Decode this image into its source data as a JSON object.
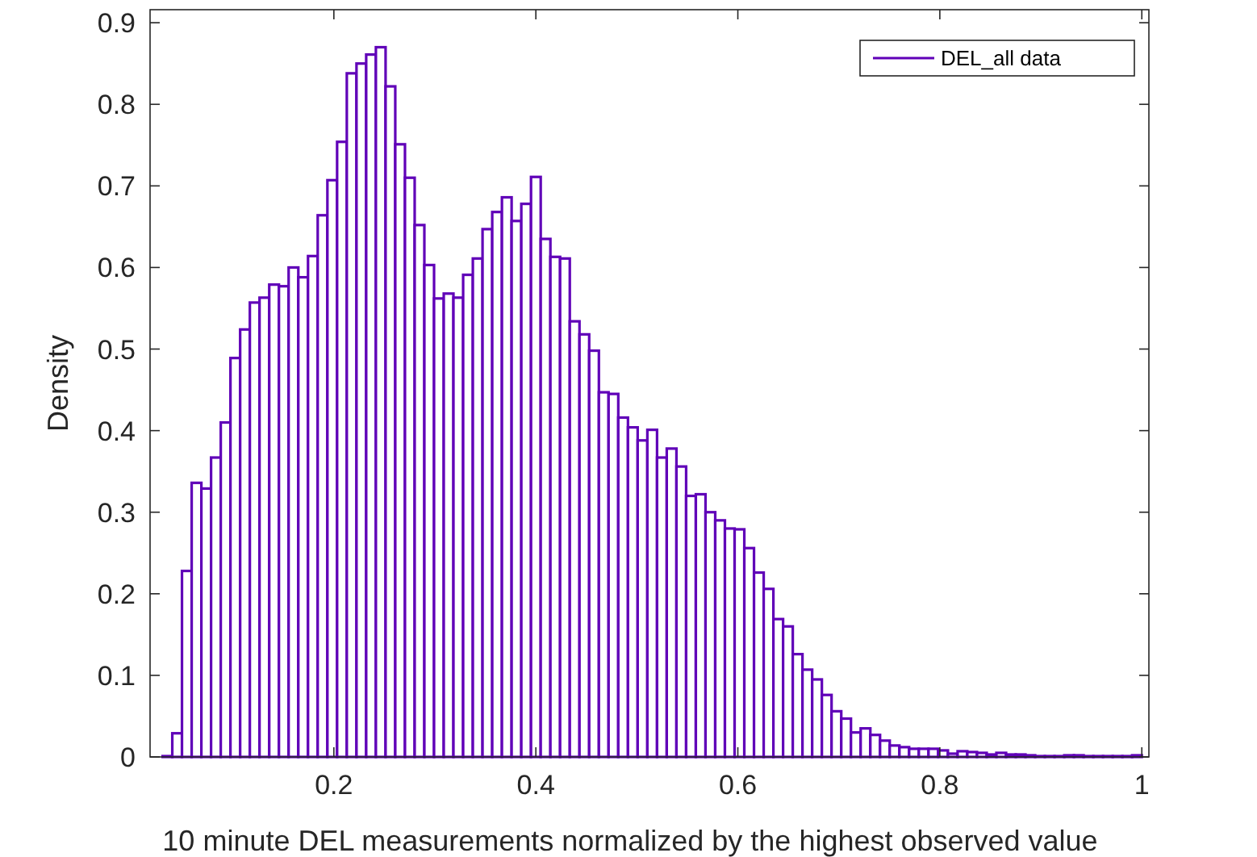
{
  "chart_data": {
    "type": "histogram",
    "xlabel": "10 minute DEL measurements normalized by the highest observed value",
    "ylabel": "Density",
    "bins": [
      0.0304,
      0.04,
      0.0496,
      0.0592,
      0.0688,
      0.0784,
      0.088,
      0.0976,
      0.1072,
      0.1168,
      0.1264,
      0.136,
      0.1456,
      0.1552,
      0.1648,
      0.1744,
      0.184,
      0.1936,
      0.2032,
      0.2128,
      0.2224,
      0.232,
      0.2416,
      0.2512,
      0.2608,
      0.2704,
      0.28,
      0.2896,
      0.2992,
      0.3088,
      0.3184,
      0.328,
      0.3376,
      0.3472,
      0.3568,
      0.3664,
      0.376,
      0.3856,
      0.3952,
      0.4048,
      0.4144,
      0.424,
      0.4336,
      0.4432,
      0.4528,
      0.4624,
      0.472,
      0.4816,
      0.4912,
      0.5008,
      0.5104,
      0.52,
      0.5296,
      0.5392,
      0.5488,
      0.5584,
      0.568,
      0.5776,
      0.5872,
      0.5968,
      0.6064,
      0.616,
      0.6256,
      0.6352,
      0.6448,
      0.6544,
      0.664,
      0.6736,
      0.6832,
      0.6928,
      0.7024,
      0.712,
      0.7216,
      0.7312,
      0.7408,
      0.7504,
      0.76,
      0.7696,
      0.7792,
      0.7888,
      0.7984,
      0.808,
      0.8176,
      0.8272,
      0.8368,
      0.8464,
      0.856,
      0.8656,
      0.8752,
      0.8848,
      0.8944,
      0.904,
      0.9136,
      0.9232,
      0.9328,
      0.9424,
      0.952,
      0.9616,
      0.9712,
      0.9808,
      0.9904,
      1.0
    ],
    "series": [
      {
        "name": "DEL_all data",
        "color": "#6000b8",
        "values": [
          0.001,
          0.029,
          0.228,
          0.336,
          0.329,
          0.367,
          0.41,
          0.489,
          0.524,
          0.557,
          0.563,
          0.579,
          0.577,
          0.6,
          0.588,
          0.614,
          0.664,
          0.707,
          0.754,
          0.838,
          0.85,
          0.861,
          0.87,
          0.822,
          0.751,
          0.71,
          0.652,
          0.603,
          0.562,
          0.568,
          0.563,
          0.591,
          0.611,
          0.647,
          0.668,
          0.686,
          0.657,
          0.678,
          0.711,
          0.635,
          0.613,
          0.611,
          0.534,
          0.518,
          0.498,
          0.447,
          0.445,
          0.416,
          0.404,
          0.388,
          0.401,
          0.367,
          0.378,
          0.356,
          0.32,
          0.322,
          0.3,
          0.29,
          0.28,
          0.279,
          0.256,
          0.226,
          0.206,
          0.169,
          0.16,
          0.126,
          0.107,
          0.095,
          0.076,
          0.056,
          0.047,
          0.03,
          0.035,
          0.027,
          0.02,
          0.014,
          0.012,
          0.01,
          0.01,
          0.01,
          0.008,
          0.004,
          0.007,
          0.006,
          0.005,
          0.003,
          0.005,
          0.003,
          0.003,
          0.002,
          0.001,
          0.001,
          0.001,
          0.002,
          0.002,
          0.001,
          0.001,
          0.001,
          0.001,
          0.001,
          0.002
        ]
      }
    ],
    "xlim": [
      0.018,
      1.007
    ],
    "xticks": [
      0.2,
      0.4,
      0.6,
      0.8,
      1
    ],
    "ylim": [
      0,
      0.916
    ],
    "yticks": [
      0,
      0.1,
      0.2,
      0.3,
      0.4,
      0.5,
      0.6,
      0.7,
      0.8,
      0.9
    ],
    "legend": "top right",
    "grid": false
  }
}
